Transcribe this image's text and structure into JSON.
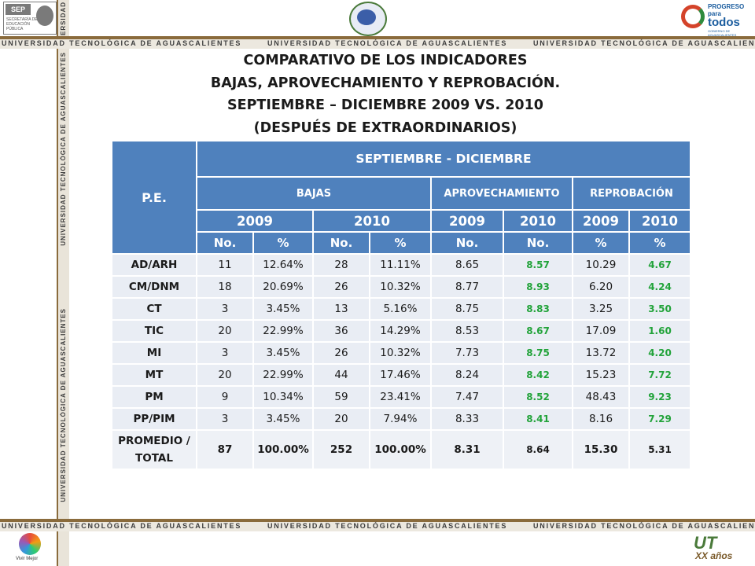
{
  "header": {
    "sep_logo_text": "SEP",
    "sep_sub": "SECRETARÍA DE EDUCACIÓN PÚBLICA",
    "progreso_line1": "PROGRESO",
    "progreso_line2": "para",
    "progreso_line3": "todos",
    "progreso_line4": "GOBIERNO DE AGUASCALIENTES"
  },
  "band": {
    "horizontal_text": "UNIVERSIDAD TECNOLÓGICA DE AGUASCALIENTES",
    "vertical_text": "UNIVERSIDAD TECNOLÓGICA DE AGUASCALIENTES",
    "vertical_short": "UNIVERSIDAD"
  },
  "footer": {
    "vivir_mejor": "Vivir Mejor",
    "xx_text": "XX años"
  },
  "title": {
    "line1": "COMPARATIVO DE LOS INDICADORES",
    "line2": "BAJAS, APROVECHAMIENTO Y REPROBACIÓN.",
    "line3": "SEPTIEMBRE – DICIEMBRE 2009 VS. 2010",
    "line4": "(DESPUÉS DE EXTRAORDINARIOS)"
  },
  "table": {
    "pe_header": "P.E.",
    "period_header": "SEPTIEMBRE - DICIEMBRE",
    "group_bajas": "BAJAS",
    "group_aprov": "APROVECHAMIENTO",
    "group_reprob": "REPROBACIÓN",
    "years": [
      "2009",
      "2010",
      "2009",
      "2010",
      "2009",
      "2010"
    ],
    "subheaders": [
      "No.",
      "%",
      "No.",
      "%",
      "No.",
      "No.",
      "%",
      "%"
    ],
    "rows": [
      {
        "pe": "AD/ARH",
        "b09n": "11",
        "b09p": "12.64%",
        "b10n": "28",
        "b10p": "11.11%",
        "a09": "8.65",
        "a10": "8.57",
        "r09": "10.29",
        "r10": "4.67"
      },
      {
        "pe": "CM/DNM",
        "b09n": "18",
        "b09p": "20.69%",
        "b10n": "26",
        "b10p": "10.32%",
        "a09": "8.77",
        "a10": "8.93",
        "r09": "6.20",
        "r10": "4.24"
      },
      {
        "pe": "CT",
        "b09n": "3",
        "b09p": "3.45%",
        "b10n": "13",
        "b10p": "5.16%",
        "a09": "8.75",
        "a10": "8.83",
        "r09": "3.25",
        "r10": "3.50"
      },
      {
        "pe": "TIC",
        "b09n": "20",
        "b09p": "22.99%",
        "b10n": "36",
        "b10p": "14.29%",
        "a09": "8.53",
        "a10": "8.67",
        "r09": "17.09",
        "r10": "1.60"
      },
      {
        "pe": "MI",
        "b09n": "3",
        "b09p": "3.45%",
        "b10n": "26",
        "b10p": "10.32%",
        "a09": "7.73",
        "a10": "8.75",
        "r09": "13.72",
        "r10": "4.20"
      },
      {
        "pe": "MT",
        "b09n": "20",
        "b09p": "22.99%",
        "b10n": "44",
        "b10p": "17.46%",
        "a09": "8.24",
        "a10": "8.42",
        "r09": "15.23",
        "r10": "7.72"
      },
      {
        "pe": "PM",
        "b09n": "9",
        "b09p": "10.34%",
        "b10n": "59",
        "b10p": "23.41%",
        "a09": "7.47",
        "a10": "8.52",
        "r09": "48.43",
        "r10": "9.23"
      },
      {
        "pe": "PP/PIM",
        "b09n": "3",
        "b09p": "3.45%",
        "b10n": "20",
        "b10p": "7.94%",
        "a09": "8.33",
        "a10": "8.41",
        "r09": "8.16",
        "r10": "7.29"
      }
    ],
    "total": {
      "pe_line1": "PROMEDIO /",
      "pe_line2": "TOTAL",
      "b09n": "87",
      "b09p": "100.00%",
      "b10n": "252",
      "b10p": "100.00%",
      "a09": "8.31",
      "a10": "8.64",
      "r09": "15.30",
      "r10": "5.31"
    }
  },
  "colors": {
    "header_blue": "#4f81bd",
    "row_bg": "#e9edf4",
    "green_values": "#22a33a",
    "band_brown": "#8a6b3c"
  }
}
